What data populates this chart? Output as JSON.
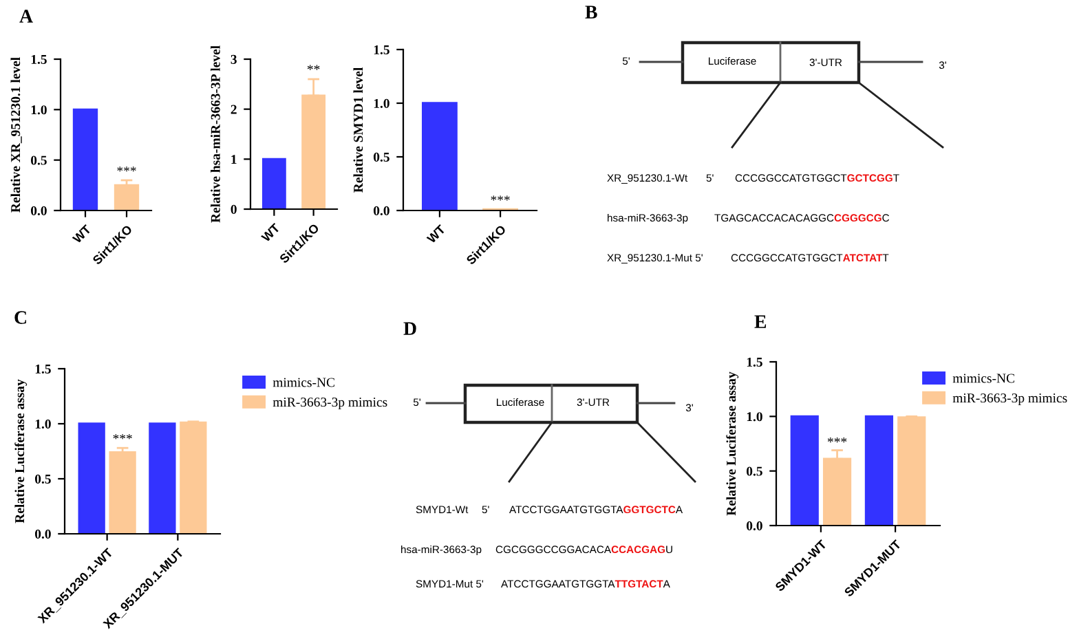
{
  "chart_data": [
    {
      "type": "bar",
      "title": "A",
      "categories": [
        "WT",
        "Sirt1/KO"
      ],
      "colors": [
        "#3333ff",
        "#fdc996"
      ],
      "values": [
        1.0,
        0.25
      ],
      "errors": [
        null,
        [
          0.25,
          0.3
        ]
      ],
      "ylabel": "Relative XR_951230.1 level",
      "ylim": [
        0,
        1.5
      ],
      "yticks": [
        {
          "value": 0,
          "label": "0.0"
        },
        {
          "value": 0.5,
          "label": "0.5"
        },
        {
          "value": 1.0,
          "label": "1.0"
        },
        {
          "value": 1.5,
          "label": "1.5"
        }
      ],
      "annotations": [
        {
          "text": "***",
          "x": "Sirt1/KO",
          "y": 0.32
        }
      ],
      "grid": false,
      "legend": false
    },
    {
      "type": "bar",
      "categories": [
        "WT",
        "Sirt1/KO"
      ],
      "colors": [
        "#3333ff",
        "#fdc996"
      ],
      "values": [
        1.0,
        2.27
      ],
      "errors": [
        null,
        [
          2.27,
          2.6
        ]
      ],
      "ylabel": "Relative hsa-miR-3663-3P level",
      "ylim": [
        0,
        3
      ],
      "yticks": [
        0,
        1,
        2,
        3
      ],
      "annotations": [
        {
          "text": "**",
          "x": "Sirt1/KO",
          "y": 2.65
        }
      ],
      "grid": false,
      "legend": false
    },
    {
      "type": "bar",
      "categories": [
        "WT",
        "Sirt1/KO"
      ],
      "colors": [
        "#3333ff",
        "#fdc996"
      ],
      "values": [
        1.0,
        0.01
      ],
      "ylabel": "Relative SMYD1 level",
      "ylim": [
        0,
        1.5
      ],
      "yticks": [
        {
          "value": 0,
          "label": "0.0"
        },
        {
          "value": 0.5,
          "label": "0.5"
        },
        {
          "value": 1.0,
          "label": "1.0"
        },
        {
          "value": 1.5,
          "label": "1.5"
        }
      ],
      "annotations": [
        {
          "text": "***",
          "x": "Sirt1/KO",
          "y": 0.03
        }
      ],
      "grid": false,
      "legend": false
    },
    {
      "type": "other",
      "title": "B",
      "annotations": [
        "5'",
        "Luciferase",
        "3'-UTR",
        "3'",
        "XR_951230.1-Wt",
        "5'",
        "CCCGGCCATGTGGCT",
        "GCTCGG",
        "T",
        "hsa-miR-3663-3p",
        "TGAGCACCACACAGGC",
        "CGGGCG",
        "C",
        "XR_951230.1-Mut 5'",
        "CCCGGCCATGTGGCT",
        "ATCTAT",
        "T"
      ]
    },
    {
      "type": "bar",
      "title": "C",
      "categories": [
        "XR_951230.1-WT",
        "XR_951230.1-MUT"
      ],
      "ylabel": "Relative Luciferase assay",
      "ylim": [
        0,
        1.5
      ],
      "yticks": [
        {
          "value": 0,
          "label": "0.0"
        },
        {
          "value": 0.5,
          "label": "0.5"
        },
        {
          "value": 1.0,
          "label": "1.0"
        },
        {
          "value": 1.5,
          "label": "1.5"
        }
      ],
      "grid": false,
      "legend": "right",
      "series": [
        {
          "name": "mimics-NC",
          "color": "#3333ff",
          "values": [
            1.0,
            1.0
          ]
        },
        {
          "name": "miR-3663-3p mimics",
          "color": "#fdc996",
          "values": [
            0.74,
            1.01
          ],
          "errors": [
            [
              0.74,
              0.78
            ],
            [
              1.01,
              1.02
            ]
          ]
        }
      ],
      "annotations": [
        {
          "text": "***",
          "x": "XR_951230.1-WT",
          "y": 0.8
        }
      ]
    },
    {
      "type": "other",
      "title": "D",
      "annotations": [
        "5'",
        "Luciferase",
        "3'-UTR",
        "3'",
        "SMYD1-Wt",
        "5'",
        "ATCCTGGAATGTGGTA",
        "GGTGCTC",
        "A",
        "hsa-miR-3663-3p",
        "CGCGGGCCGGACACA",
        "CCACGAG",
        "U",
        "SMYD1-Mut 5'",
        "ATCCTGGAATGTGGTA",
        "TTGTACT",
        "A"
      ]
    },
    {
      "type": "bar",
      "title": "E",
      "categories": [
        "SMYD1-WT",
        "SMYD1-MUT"
      ],
      "ylabel": "Relative Luciferase assay",
      "ylim": [
        0,
        1.5
      ],
      "yticks": [
        {
          "value": 0,
          "label": "0.0"
        },
        {
          "value": 0.5,
          "label": "0.5"
        },
        {
          "value": 1.0,
          "label": "1.0"
        },
        {
          "value": 1.5,
          "label": "1.5"
        }
      ],
      "grid": false,
      "legend": "right",
      "series": [
        {
          "name": "mimics-NC",
          "color": "#3333ff",
          "values": [
            1.0,
            1.0
          ]
        },
        {
          "name": "miR-3663-3p mimics",
          "color": "#fdc996",
          "values": [
            0.61,
            0.99
          ],
          "errors": [
            [
              0.61,
              0.69
            ],
            [
              0.99,
              1.0
            ]
          ]
        }
      ],
      "annotations": [
        {
          "text": "***",
          "x": "SMYD1-WT",
          "y": 0.7
        }
      ]
    }
  ]
}
